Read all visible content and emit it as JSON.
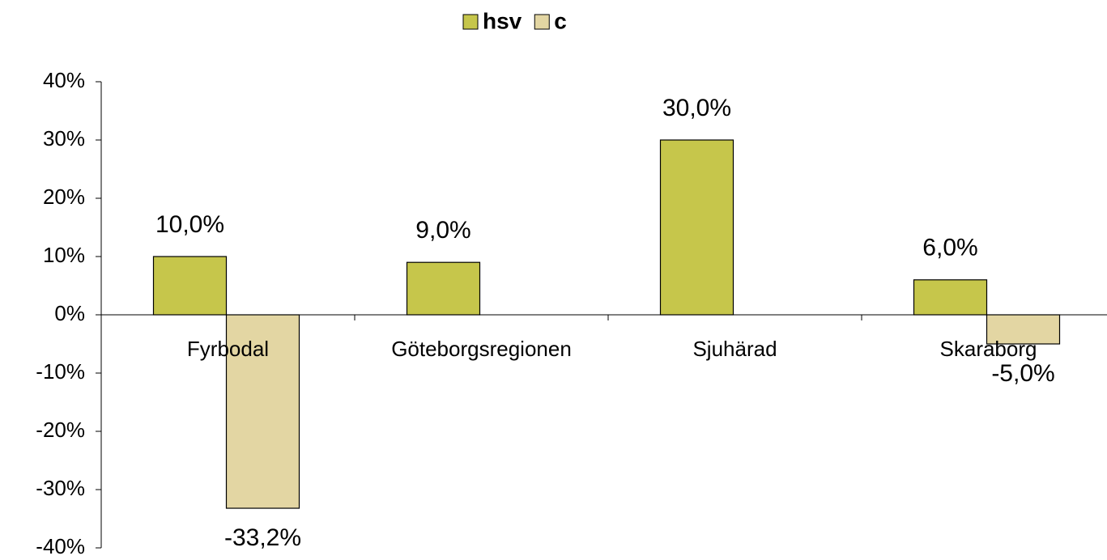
{
  "chart_data": {
    "type": "bar",
    "categories": [
      "Fyrbodal",
      "Göteborgsregionen",
      "Sjuhärad",
      "Skaraborg"
    ],
    "series": [
      {
        "name": "hsv",
        "color": "#c6c64b",
        "values": [
          10,
          9,
          30,
          6
        ],
        "value_labels": [
          "10,0%",
          "9,0%",
          "30,0%",
          "6,0%"
        ]
      },
      {
        "name": "c",
        "color": "#e3d6a3",
        "values": [
          -33.2,
          null,
          null,
          -5
        ],
        "value_labels": [
          "-33,2%",
          null,
          null,
          "-5,0%"
        ]
      }
    ],
    "ylim": [
      -40,
      40
    ],
    "yticks": [
      {
        "value": -40,
        "label": "-40%"
      },
      {
        "value": -30,
        "label": "-30%"
      },
      {
        "value": -20,
        "label": "-20%"
      },
      {
        "value": -10,
        "label": "-10%"
      },
      {
        "value": 0,
        "label": "0%"
      },
      {
        "value": 10,
        "label": "10%"
      },
      {
        "value": 20,
        "label": "20%"
      },
      {
        "value": 30,
        "label": "30%"
      },
      {
        "value": 40,
        "label": "40%"
      }
    ],
    "legend": "top"
  }
}
